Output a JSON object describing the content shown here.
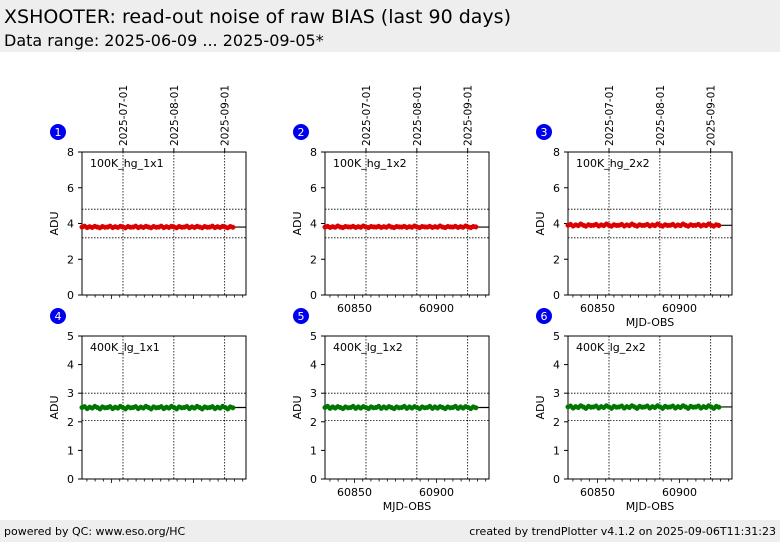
{
  "header": {
    "title": "XSHOOTER: read-out noise of raw BIAS (last 90 days)",
    "subtitle": "Data range: 2025-06-09 ... 2025-09-05*"
  },
  "footer": {
    "left": "powered by QC: www.eso.org/HC",
    "right": "created by trendPlotter v4.1.2 on 2025-09-06T11:31:23"
  },
  "colors": {
    "red": "#dd0000",
    "green": "#007700",
    "badge": "#0000ee"
  },
  "chart_data": [
    {
      "type": "scatter",
      "panel": 1,
      "label": "100K_hg_1x1",
      "ylabel": "ADU",
      "xlabel": "",
      "date_ticks": [
        "2025-07-01",
        "2025-08-01",
        "2025-09-01"
      ],
      "x_ticks": [],
      "ylim": [
        0,
        8
      ],
      "yticks": [
        0,
        2,
        4,
        6,
        8
      ],
      "color": "red",
      "median": 3.8,
      "upper": 4.8,
      "lower": 3.2,
      "x_range": [
        60832,
        60924
      ],
      "n_points": 60,
      "pattern": [
        3.8,
        3.85,
        3.77,
        3.82,
        3.78,
        3.84,
        3.8,
        3.76,
        3.83,
        3.79
      ]
    },
    {
      "type": "scatter",
      "panel": 2,
      "label": "100K_hg_1x2",
      "ylabel": "ADU",
      "xlabel": "",
      "date_ticks": [
        "2025-07-01",
        "2025-08-01",
        "2025-09-01"
      ],
      "x_ticks": [
        "60850",
        "60900"
      ],
      "ylim": [
        0,
        8
      ],
      "yticks": [
        0,
        2,
        4,
        6,
        8
      ],
      "color": "red",
      "median": 3.8,
      "upper": 4.8,
      "lower": 3.2,
      "x_range": [
        60832,
        60924
      ],
      "n_points": 60,
      "pattern": [
        3.8,
        3.84,
        3.78,
        3.82,
        3.79,
        3.86,
        3.8,
        3.77,
        3.83,
        3.81
      ]
    },
    {
      "type": "scatter",
      "panel": 3,
      "label": "100K_hg_2x2",
      "ylabel": "ADU",
      "xlabel": "MJD-OBS",
      "date_ticks": [
        "2025-07-01",
        "2025-08-01",
        "2025-09-01"
      ],
      "x_ticks": [
        "60850",
        "60900"
      ],
      "ylim": [
        0,
        8
      ],
      "yticks": [
        0,
        2,
        4,
        6,
        8
      ],
      "color": "red",
      "median": 3.9,
      "upper": 4.8,
      "lower": 3.2,
      "x_range": [
        60832,
        60924
      ],
      "n_points": 60,
      "pattern": [
        3.9,
        3.95,
        3.86,
        3.92,
        3.88,
        3.97,
        3.9,
        3.85,
        3.93,
        3.89
      ]
    },
    {
      "type": "scatter",
      "panel": 4,
      "label": "400K_lg_1x1",
      "ylabel": "ADU",
      "xlabel": "",
      "date_ticks": [],
      "x_ticks": [],
      "ylim": [
        0,
        5
      ],
      "yticks": [
        0,
        1,
        2,
        3,
        4,
        5
      ],
      "color": "green",
      "median": 2.5,
      "upper": 3.0,
      "lower": 2.05,
      "x_range": [
        60832,
        60924
      ],
      "n_points": 60,
      "pattern": [
        2.5,
        2.53,
        2.46,
        2.51,
        2.48,
        2.54,
        2.5,
        2.45,
        2.52,
        2.49
      ]
    },
    {
      "type": "scatter",
      "panel": 5,
      "label": "400K_lg_1x2",
      "ylabel": "ADU",
      "xlabel": "MJD-OBS",
      "date_ticks": [],
      "x_ticks": [
        "60850",
        "60900"
      ],
      "ylim": [
        0,
        5
      ],
      "yticks": [
        0,
        1,
        2,
        3,
        4,
        5
      ],
      "color": "green",
      "median": 2.5,
      "upper": 3.0,
      "lower": 2.05,
      "x_range": [
        60832,
        60924
      ],
      "n_points": 60,
      "pattern": [
        2.5,
        2.54,
        2.47,
        2.52,
        2.48,
        2.53,
        2.5,
        2.46,
        2.52,
        2.49
      ]
    },
    {
      "type": "scatter",
      "panel": 6,
      "label": "400K_lg_2x2",
      "ylabel": "ADU",
      "xlabel": "MJD-OBS",
      "date_ticks": [],
      "x_ticks": [
        "60850",
        "60900"
      ],
      "ylim": [
        0,
        5
      ],
      "yticks": [
        0,
        1,
        2,
        3,
        4,
        5
      ],
      "color": "green",
      "median": 2.52,
      "upper": 3.0,
      "lower": 2.05,
      "x_range": [
        60832,
        60924
      ],
      "n_points": 60,
      "pattern": [
        2.52,
        2.55,
        2.48,
        2.53,
        2.5,
        2.56,
        2.52,
        2.47,
        2.54,
        2.51
      ]
    }
  ]
}
